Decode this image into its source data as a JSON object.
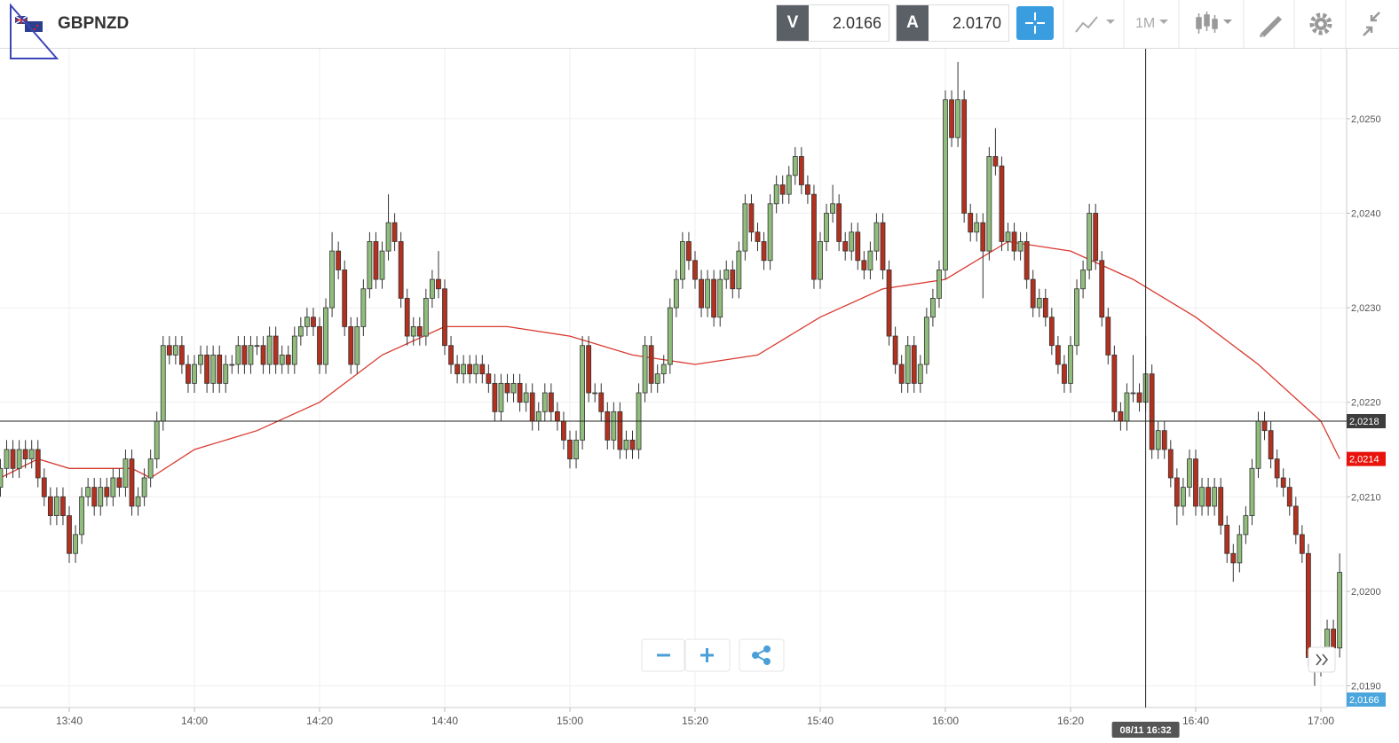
{
  "toolbar": {
    "symbol": "GBPNZD",
    "bid_label": "V",
    "bid": "2.0166",
    "ask_label": "A",
    "ask": "2.0170",
    "timeframe": "1M"
  },
  "chart_data": {
    "type": "candlestick",
    "x": [
      "13:29",
      "13:30",
      "13:31",
      "13:32",
      "13:33",
      "13:34",
      "13:35",
      "13:36",
      "13:37",
      "13:38",
      "13:39",
      "13:40",
      "13:41",
      "13:42",
      "13:43",
      "13:44",
      "13:45",
      "13:46",
      "13:47",
      "13:48",
      "13:49",
      "13:50",
      "13:51",
      "13:52",
      "13:53",
      "13:54",
      "13:55",
      "13:56",
      "13:57",
      "13:58",
      "13:59",
      "14:00",
      "14:01",
      "14:02",
      "14:03",
      "14:04",
      "14:05",
      "14:06",
      "14:07",
      "14:08",
      "14:09",
      "14:10",
      "14:11",
      "14:12",
      "14:13",
      "14:14",
      "14:15",
      "14:16",
      "14:17",
      "14:18",
      "14:19",
      "14:20",
      "14:21",
      "14:22",
      "14:23",
      "14:24",
      "14:25",
      "14:26",
      "14:27",
      "14:28",
      "14:29",
      "14:30",
      "14:31",
      "14:32",
      "14:33",
      "14:34",
      "14:35",
      "14:36",
      "14:37",
      "14:38",
      "14:39",
      "14:40",
      "14:41",
      "14:42",
      "14:43",
      "14:44",
      "14:45",
      "14:46",
      "14:47",
      "14:48",
      "14:49",
      "14:50",
      "14:51",
      "14:52",
      "14:53",
      "14:54",
      "14:55",
      "14:56",
      "14:57",
      "14:58",
      "14:59",
      "15:00",
      "15:01",
      "15:02",
      "15:03",
      "15:04",
      "15:05",
      "15:06",
      "15:07",
      "15:08",
      "15:09",
      "15:10",
      "15:11",
      "15:12",
      "15:13",
      "15:14",
      "15:15",
      "15:16",
      "15:17",
      "15:18",
      "15:19",
      "15:20",
      "15:21",
      "15:22",
      "15:23",
      "15:24",
      "15:25",
      "15:26",
      "15:27",
      "15:28",
      "15:29",
      "15:30",
      "15:31",
      "15:32",
      "15:33",
      "15:34",
      "15:35",
      "15:36",
      "15:37",
      "15:38",
      "15:39",
      "15:40",
      "15:41",
      "15:42",
      "15:43",
      "15:44",
      "15:45",
      "15:46",
      "15:47",
      "15:48",
      "15:49",
      "15:50",
      "15:51",
      "15:52",
      "15:53",
      "15:54",
      "15:55",
      "15:56",
      "15:57",
      "15:58",
      "15:59",
      "16:00",
      "16:01",
      "16:02",
      "16:03",
      "16:04",
      "16:05",
      "16:06",
      "16:07",
      "16:08",
      "16:09",
      "16:10",
      "16:11",
      "16:12",
      "16:13",
      "16:14",
      "16:15",
      "16:16",
      "16:17",
      "16:18",
      "16:19",
      "16:20",
      "16:21",
      "16:22",
      "16:23",
      "16:24",
      "16:25",
      "16:26",
      "16:27",
      "16:28",
      "16:29",
      "16:30",
      "16:31",
      "16:32",
      "16:33",
      "16:34",
      "16:35",
      "16:36",
      "16:37",
      "16:38",
      "16:39",
      "16:40",
      "16:41",
      "16:42",
      "16:43",
      "16:44",
      "16:45",
      "16:46",
      "16:47",
      "16:48",
      "16:49",
      "16:50",
      "16:51",
      "16:52",
      "16:53",
      "16:54",
      "16:55",
      "16:56",
      "16:57",
      "16:58",
      "16:59",
      "17:00",
      "17:01",
      "17:02",
      "17:03"
    ],
    "open": [
      2.0211,
      2.0213,
      2.0215,
      2.0213,
      2.0215,
      2.0214,
      2.0215,
      2.0212,
      2.021,
      2.0208,
      2.021,
      2.0208,
      2.0204,
      2.0206,
      2.021,
      2.0211,
      2.0209,
      2.0211,
      2.021,
      2.0212,
      2.0211,
      2.0214,
      2.0209,
      2.021,
      2.0212,
      2.0214,
      2.0218,
      2.0226,
      2.0225,
      2.0226,
      2.0224,
      2.0222,
      2.0224,
      2.0225,
      2.0222,
      2.0225,
      2.0222,
      2.0224,
      2.0224,
      2.0226,
      2.0224,
      2.0226,
      2.0226,
      2.0224,
      2.0227,
      2.0224,
      2.0225,
      2.0224,
      2.0227,
      2.0228,
      2.0229,
      2.0228,
      2.0224,
      2.023,
      2.0236,
      2.0234,
      2.0228,
      2.0224,
      2.0228,
      2.0232,
      2.0237,
      2.0233,
      2.0236,
      2.0239,
      2.0237,
      2.0231,
      2.0227,
      2.0228,
      2.0227,
      2.0231,
      2.0233,
      2.0232,
      2.0226,
      2.0224,
      2.0223,
      2.0224,
      2.0223,
      2.0224,
      2.0223,
      2.0222,
      2.0219,
      2.0222,
      2.0221,
      2.0222,
      2.022,
      2.0221,
      2.0218,
      2.0219,
      2.0221,
      2.0219,
      2.0218,
      2.0216,
      2.0214,
      2.0216,
      2.0226,
      2.0221,
      2.0221,
      2.0219,
      2.0216,
      2.0219,
      2.0215,
      2.0216,
      2.0215,
      2.0221,
      2.0226,
      2.0222,
      2.0223,
      2.0224,
      2.023,
      2.0233,
      2.0237,
      2.0235,
      2.0233,
      2.023,
      2.0233,
      2.0229,
      2.0233,
      2.0234,
      2.0232,
      2.0236,
      2.0241,
      2.0238,
      2.0237,
      2.0235,
      2.0241,
      2.0243,
      2.0242,
      2.0244,
      2.0246,
      2.0243,
      2.0242,
      2.0233,
      2.0237,
      2.024,
      2.0241,
      2.0237,
      2.0236,
      2.0238,
      2.0235,
      2.0234,
      2.0236,
      2.0239,
      2.0234,
      2.0227,
      2.0224,
      2.0222,
      2.0226,
      2.0222,
      2.0224,
      2.0229,
      2.0231,
      2.0234,
      2.0252,
      2.0248,
      2.0252,
      2.024,
      2.0238,
      2.0239,
      2.0236,
      2.0246,
      2.0245,
      2.0237,
      2.0238,
      2.0236,
      2.0237,
      2.0233,
      2.023,
      2.0231,
      2.0229,
      2.0226,
      2.0224,
      2.0222,
      2.0226,
      2.0232,
      2.0234,
      2.024,
      2.0235,
      2.0229,
      2.0225,
      2.0219,
      2.0218,
      2.0221,
      2.0221,
      2.022,
      2.0223,
      2.0215,
      2.0217,
      2.0215,
      2.0212,
      2.0209,
      2.0211,
      2.0214,
      2.0209,
      2.0211,
      2.0209,
      2.0211,
      2.0207,
      2.0204,
      2.0203,
      2.0206,
      2.0208,
      2.0213,
      2.0218,
      2.0217,
      2.0214,
      2.0212,
      2.0211,
      2.0209,
      2.0206,
      2.0204,
      2.0193,
      2.0192,
      2.0193,
      2.0196,
      2.0194
    ],
    "high": [
      2.0214,
      2.0216,
      2.0216,
      2.0216,
      2.0216,
      2.0216,
      2.0216,
      2.0213,
      2.0211,
      2.0211,
      2.0211,
      2.0209,
      2.0207,
      2.0211,
      2.0212,
      2.0212,
      2.0212,
      2.0212,
      2.0213,
      2.0213,
      2.0215,
      2.0215,
      2.0211,
      2.0213,
      2.0215,
      2.0219,
      2.0227,
      2.0227,
      2.0227,
      2.0227,
      2.0225,
      2.0225,
      2.0226,
      2.0226,
      2.0226,
      2.0226,
      2.0225,
      2.0225,
      2.0227,
      2.0227,
      2.0227,
      2.0227,
      2.0227,
      2.0228,
      2.0228,
      2.0226,
      2.0226,
      2.0228,
      2.0229,
      2.023,
      2.023,
      2.0229,
      2.0231,
      2.0238,
      2.0237,
      2.0235,
      2.0229,
      2.0229,
      2.0233,
      2.0238,
      2.0238,
      2.0237,
      2.0242,
      2.024,
      2.0238,
      2.0232,
      2.0229,
      2.0229,
      2.0232,
      2.0234,
      2.0236,
      2.0233,
      2.0227,
      2.0225,
      2.0225,
      2.0225,
      2.0225,
      2.0225,
      2.0224,
      2.0223,
      2.0223,
      2.0223,
      2.0223,
      2.0223,
      2.0222,
      2.0222,
      2.022,
      2.0222,
      2.0222,
      2.022,
      2.0219,
      2.0217,
      2.0217,
      2.0227,
      2.0227,
      2.0222,
      2.0222,
      2.022,
      2.022,
      2.022,
      2.0217,
      2.0217,
      2.0222,
      2.0227,
      2.0227,
      2.0224,
      2.0225,
      2.0231,
      2.0234,
      2.0238,
      2.0238,
      2.0236,
      2.0234,
      2.0234,
      2.0234,
      2.0234,
      2.0235,
      2.0235,
      2.0237,
      2.0242,
      2.0242,
      2.0239,
      2.0238,
      2.0242,
      2.0244,
      2.0244,
      2.0245,
      2.0247,
      2.0247,
      2.0244,
      2.0243,
      2.0238,
      2.0241,
      2.0243,
      2.0242,
      2.0238,
      2.0239,
      2.0239,
      2.0236,
      2.0237,
      2.024,
      2.024,
      2.0235,
      2.0228,
      2.0225,
      2.0227,
      2.0227,
      2.0225,
      2.023,
      2.0232,
      2.0235,
      2.0253,
      2.0253,
      2.0256,
      2.0253,
      2.0241,
      2.024,
      2.024,
      2.0247,
      2.0249,
      2.0246,
      2.0239,
      2.0239,
      2.0238,
      2.0238,
      2.0234,
      2.0232,
      2.0232,
      2.023,
      2.0227,
      2.0225,
      2.0227,
      2.0233,
      2.0235,
      2.0241,
      2.0241,
      2.0236,
      2.023,
      2.0226,
      2.022,
      2.0222,
      2.0225,
      2.0222,
      2.0227,
      2.0224,
      2.0218,
      2.0218,
      2.0216,
      2.0213,
      2.0212,
      2.0215,
      2.0215,
      2.0212,
      2.0212,
      2.0212,
      2.0212,
      2.0208,
      2.0205,
      2.0207,
      2.0209,
      2.0214,
      2.0219,
      2.0219,
      2.0218,
      2.0215,
      2.0213,
      2.0212,
      2.021,
      2.0207,
      2.0205,
      2.0194,
      2.0194,
      2.0197,
      2.0197,
      2.0204
    ],
    "low": [
      2.021,
      2.0212,
      2.0212,
      2.0212,
      2.0213,
      2.0213,
      2.0211,
      2.0209,
      2.0207,
      2.0207,
      2.0207,
      2.0203,
      2.0203,
      2.0205,
      2.0209,
      2.0208,
      2.0208,
      2.0209,
      2.0209,
      2.021,
      2.021,
      2.0208,
      2.0208,
      2.0209,
      2.0211,
      2.0213,
      2.0217,
      2.0224,
      2.0224,
      2.0223,
      2.0221,
      2.0221,
      2.0223,
      2.0221,
      2.0221,
      2.0221,
      2.0221,
      2.0223,
      2.0223,
      2.0223,
      2.0223,
      2.0225,
      2.0223,
      2.0223,
      2.0223,
      2.0223,
      2.0223,
      2.0223,
      2.0226,
      2.0227,
      2.0227,
      2.0223,
      2.0223,
      2.0229,
      2.0233,
      2.0227,
      2.0223,
      2.0223,
      2.0227,
      2.0231,
      2.0232,
      2.0232,
      2.0235,
      2.0236,
      2.023,
      2.0226,
      2.0226,
      2.0226,
      2.0226,
      2.023,
      2.0231,
      2.0225,
      2.0223,
      2.0222,
      2.0222,
      2.0222,
      2.0222,
      2.0222,
      2.0221,
      2.0218,
      2.0218,
      2.022,
      2.022,
      2.0219,
      2.0219,
      2.0217,
      2.0217,
      2.0218,
      2.0218,
      2.0217,
      2.0215,
      2.0213,
      2.0213,
      2.0215,
      2.022,
      2.022,
      2.0218,
      2.0215,
      2.0215,
      2.0214,
      2.0214,
      2.0214,
      2.0214,
      2.022,
      2.0221,
      2.0221,
      2.0222,
      2.0223,
      2.0229,
      2.0232,
      2.0234,
      2.0232,
      2.0229,
      2.0229,
      2.0228,
      2.0228,
      2.0232,
      2.0231,
      2.0231,
      2.0235,
      2.0237,
      2.0236,
      2.0234,
      2.0234,
      2.024,
      2.0241,
      2.0241,
      2.0243,
      2.0242,
      2.0241,
      2.0232,
      2.0232,
      2.0236,
      2.0239,
      2.0236,
      2.0235,
      2.0235,
      2.0234,
      2.0233,
      2.0233,
      2.0235,
      2.0233,
      2.0226,
      2.0223,
      2.0221,
      2.0221,
      2.0221,
      2.0221,
      2.0223,
      2.0228,
      2.023,
      2.0233,
      2.0247,
      2.0247,
      2.0239,
      2.0237,
      2.0237,
      2.0231,
      2.0235,
      2.0244,
      2.0236,
      2.0236,
      2.0235,
      2.0235,
      2.0232,
      2.0229,
      2.0229,
      2.0228,
      2.0225,
      2.0223,
      2.0221,
      2.0221,
      2.0225,
      2.0231,
      2.0233,
      2.0234,
      2.0228,
      2.0224,
      2.0218,
      2.0217,
      2.0217,
      2.022,
      2.0219,
      2.0219,
      2.0214,
      2.0214,
      2.0214,
      2.0211,
      2.0207,
      2.0208,
      2.021,
      2.0208,
      2.0208,
      2.0208,
      2.0208,
      2.0206,
      2.0203,
      2.0201,
      2.0202,
      2.0205,
      2.0207,
      2.0212,
      2.0216,
      2.0213,
      2.0211,
      2.021,
      2.0208,
      2.0205,
      2.0203,
      2.0192,
      2.019,
      2.0191,
      2.0192,
      2.0193,
      2.0193
    ],
    "close": [
      2.0213,
      2.0215,
      2.0213,
      2.0215,
      2.0214,
      2.0215,
      2.0212,
      2.021,
      2.0208,
      2.021,
      2.0208,
      2.0204,
      2.0206,
      2.021,
      2.0211,
      2.0209,
      2.0211,
      2.021,
      2.0212,
      2.0211,
      2.0214,
      2.0209,
      2.021,
      2.0212,
      2.0214,
      2.0218,
      2.0226,
      2.0225,
      2.0226,
      2.0224,
      2.0222,
      2.0224,
      2.0225,
      2.0222,
      2.0225,
      2.0222,
      2.0224,
      2.0224,
      2.0226,
      2.0224,
      2.0226,
      2.0226,
      2.0224,
      2.0227,
      2.0224,
      2.0225,
      2.0224,
      2.0227,
      2.0228,
      2.0229,
      2.0228,
      2.0224,
      2.023,
      2.0236,
      2.0234,
      2.0228,
      2.0224,
      2.0228,
      2.0232,
      2.0237,
      2.0233,
      2.0236,
      2.0239,
      2.0237,
      2.0231,
      2.0227,
      2.0228,
      2.0227,
      2.0231,
      2.0233,
      2.0232,
      2.0226,
      2.0224,
      2.0223,
      2.0224,
      2.0223,
      2.0224,
      2.0223,
      2.0222,
      2.0219,
      2.0222,
      2.0221,
      2.0222,
      2.022,
      2.0221,
      2.0218,
      2.0219,
      2.0221,
      2.0219,
      2.0218,
      2.0216,
      2.0214,
      2.0216,
      2.0226,
      2.0221,
      2.0221,
      2.0219,
      2.0216,
      2.0219,
      2.0215,
      2.0216,
      2.0215,
      2.0221,
      2.0226,
      2.0222,
      2.0223,
      2.0224,
      2.023,
      2.0233,
      2.0237,
      2.0235,
      2.0233,
      2.023,
      2.0233,
      2.0229,
      2.0233,
      2.0234,
      2.0232,
      2.0236,
      2.0241,
      2.0238,
      2.0237,
      2.0235,
      2.0241,
      2.0243,
      2.0242,
      2.0244,
      2.0246,
      2.0243,
      2.0242,
      2.0233,
      2.0237,
      2.024,
      2.0241,
      2.0237,
      2.0236,
      2.0238,
      2.0235,
      2.0234,
      2.0236,
      2.0239,
      2.0234,
      2.0227,
      2.0224,
      2.0222,
      2.0226,
      2.0222,
      2.0224,
      2.0229,
      2.0231,
      2.0234,
      2.0252,
      2.0248,
      2.0252,
      2.024,
      2.0238,
      2.0239,
      2.0236,
      2.0246,
      2.0245,
      2.0237,
      2.0238,
      2.0236,
      2.0237,
      2.0233,
      2.023,
      2.0231,
      2.0229,
      2.0226,
      2.0224,
      2.0222,
      2.0226,
      2.0232,
      2.0234,
      2.024,
      2.0235,
      2.0229,
      2.0225,
      2.0219,
      2.0218,
      2.0221,
      2.0221,
      2.022,
      2.0223,
      2.0215,
      2.0217,
      2.0215,
      2.0212,
      2.0209,
      2.0211,
      2.0214,
      2.0209,
      2.0211,
      2.0209,
      2.0211,
      2.0207,
      2.0204,
      2.0203,
      2.0206,
      2.0208,
      2.0213,
      2.0218,
      2.0217,
      2.0214,
      2.0212,
      2.0211,
      2.0209,
      2.0206,
      2.0204,
      2.0193,
      2.0192,
      2.0193,
      2.0196,
      2.0194,
      2.0202
    ],
    "up_color": "#90bd7c",
    "down_color": "#b3311e",
    "ma": {
      "color": "#d93a30",
      "x": [
        "13:29",
        "13:35",
        "13:40",
        "13:45",
        "13:50",
        "13:53",
        "14:00",
        "14:10",
        "14:20",
        "14:30",
        "14:40",
        "14:50",
        "15:00",
        "15:10",
        "15:20",
        "15:30",
        "15:40",
        "15:50",
        "16:00",
        "16:10",
        "16:20",
        "16:30",
        "16:40",
        "16:50",
        "17:00",
        "17:03"
      ],
      "values": [
        2.0212,
        2.0214,
        2.0213,
        2.0213,
        2.0213,
        2.0212,
        2.0215,
        2.0217,
        2.022,
        2.0225,
        2.0228,
        2.0228,
        2.0227,
        2.0225,
        2.0224,
        2.0225,
        2.0229,
        2.0232,
        2.0233,
        2.0237,
        2.0236,
        2.0233,
        2.0229,
        2.0224,
        2.0218,
        2.0214
      ]
    },
    "ylim": [
      2.01877,
      2.02574
    ],
    "yticks": [
      {
        "value": 2.019,
        "label": "2,0190"
      },
      {
        "value": 2.02,
        "label": "2,0200"
      },
      {
        "value": 2.021,
        "label": "2,0210"
      },
      {
        "value": 2.022,
        "label": "2,0220"
      },
      {
        "value": 2.023,
        "label": "2,0230"
      },
      {
        "value": 2.024,
        "label": "2,0240"
      },
      {
        "value": 2.025,
        "label": "2,0250"
      }
    ],
    "xticks": [
      "13:40",
      "14:00",
      "14:20",
      "14:40",
      "15:00",
      "15:20",
      "15:40",
      "16:00",
      "16:20",
      "16:40",
      "17:00"
    ],
    "grid": true,
    "crosshair": {
      "x": "16:32",
      "x_label": "08/11 16:32",
      "y": {
        "value": 2.0218,
        "label": "2,0218"
      }
    },
    "ma_last": {
      "value": 2.0214,
      "label": "2,0214"
    },
    "last_price": {
      "value": 2.0166,
      "label": "2,0166"
    }
  }
}
